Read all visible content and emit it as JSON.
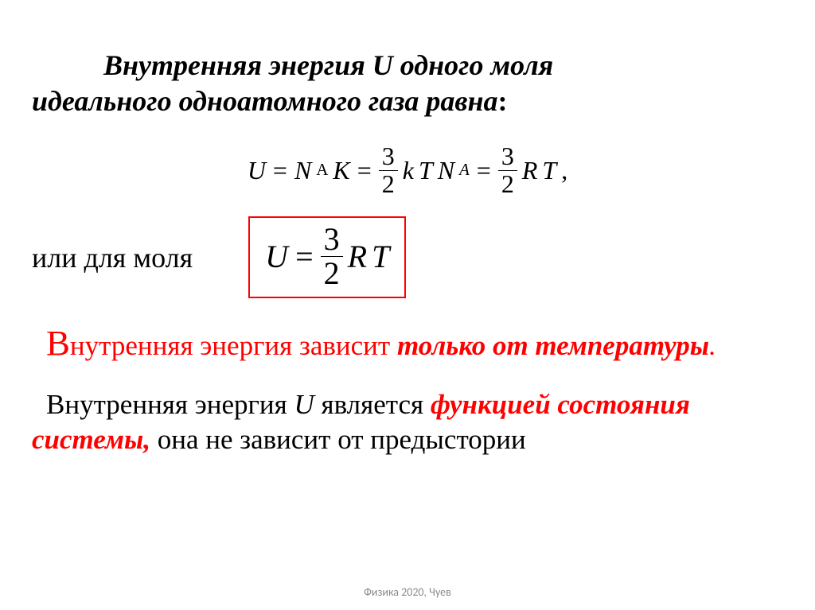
{
  "heading_line1_prefix": "Внутренняя энергия ",
  "heading_U": "U",
  "heading_line1_suffix": " одного моля",
  "heading_line2": "идеального одноатомного газа равна",
  "heading_colon": ":",
  "eq1": {
    "U": "U",
    "eq": "=",
    "N": "N",
    "A": "A",
    "K": "K",
    "frac_num": "3",
    "frac_den": "2",
    "k": "k",
    "T": "T",
    "N2": "N",
    "A2": "A",
    "R": "R",
    "T2": "T",
    "comma": ","
  },
  "mol_label": "или для моля",
  "boxed": {
    "U": "U",
    "eq": "=",
    "num": "3",
    "den": "2",
    "R": "R",
    "T": "T"
  },
  "p1_bigV": "В",
  "p1_rest1": "нутренняя энергия зависит",
  "p1_italic": " только от температуры",
  "p1_dot": ".",
  "p2_indent_text1": "Внутренняя энергия ",
  "p2_U": "U",
  "p2_text1b": " является ",
  "p2_red1": "функцией состояния",
  "p2_red2": "системы,",
  "p2_text2": " она не зависит от предыстории",
  "footer": "Физика 2020, Чуев",
  "colors": {
    "red": "#ff0000",
    "text": "#000000",
    "footer": "#8a8a8a",
    "bg": "#ffffff"
  }
}
